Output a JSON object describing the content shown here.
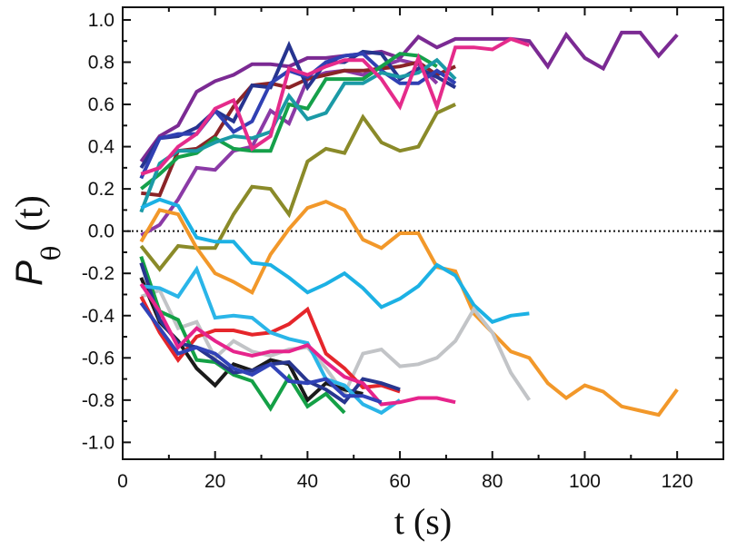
{
  "chart_data": {
    "type": "line",
    "title": "",
    "xlabel": "t (s)",
    "ylabel": {
      "main": "P",
      "subscript": "θ",
      "suffix": "(t)"
    },
    "xlim": [
      0,
      130
    ],
    "ylim": [
      -1.08,
      1.06
    ],
    "xticks": [
      0,
      20,
      40,
      60,
      80,
      100,
      120
    ],
    "xtick_labels": [
      "0",
      "20",
      "40",
      "60",
      "80",
      "100",
      "120"
    ],
    "yticks": [
      -1.0,
      -0.8,
      -0.6,
      -0.4,
      -0.2,
      0.0,
      0.2,
      0.4,
      0.6,
      0.8,
      1.0
    ],
    "ytick_labels": [
      "-1.0",
      "-0.8",
      "-0.6",
      "-0.4",
      "-0.2",
      "0.0",
      "0.2",
      "0.4",
      "0.6",
      "0.8",
      "1.0"
    ],
    "reference_line": {
      "y": 0.0,
      "style": "dotted"
    },
    "grid": false,
    "legend": "none",
    "series": [
      {
        "name": "purple",
        "color": "#7b2a93",
        "x": [
          4,
          8,
          12,
          16,
          20,
          24,
          28,
          32,
          36,
          40,
          44,
          48,
          52,
          56,
          60,
          64,
          68,
          72,
          76,
          80,
          84,
          88,
          92,
          96,
          100,
          104,
          108,
          112,
          116,
          120
        ],
        "y": [
          0.33,
          0.45,
          0.5,
          0.66,
          0.71,
          0.74,
          0.79,
          0.79,
          0.78,
          0.82,
          0.82,
          0.83,
          0.84,
          0.85,
          0.82,
          0.92,
          0.87,
          0.91,
          0.91,
          0.91,
          0.91,
          0.9,
          0.78,
          0.93,
          0.82,
          0.77,
          0.94,
          0.94,
          0.83,
          0.93
        ]
      },
      {
        "name": "purple 2",
        "color": "#8b3aa6",
        "x": [
          4,
          8,
          12,
          16,
          20,
          24,
          28,
          32,
          36,
          40,
          44,
          48,
          52,
          56,
          60,
          64,
          68
        ],
        "y": [
          -0.02,
          0.03,
          0.15,
          0.3,
          0.29,
          0.38,
          0.4,
          0.57,
          0.51,
          0.72,
          0.75,
          0.76,
          0.74,
          0.78,
          0.81,
          0.79,
          0.7
        ]
      },
      {
        "name": "dark red",
        "color": "#8a2427",
        "x": [
          4,
          8,
          12,
          16,
          20,
          24,
          28,
          32,
          36,
          40,
          44,
          48,
          52,
          56,
          60,
          64,
          68,
          72
        ],
        "y": [
          0.18,
          0.17,
          0.38,
          0.39,
          0.45,
          0.59,
          0.69,
          0.7,
          0.68,
          0.72,
          0.74,
          0.76,
          0.76,
          0.77,
          0.78,
          0.8,
          0.74,
          0.78
        ]
      },
      {
        "name": "navy",
        "color": "#26348f",
        "x": [
          4,
          8,
          12,
          16,
          20,
          24,
          28,
          32,
          36,
          40,
          44,
          48,
          52,
          56,
          60,
          64,
          68,
          72
        ],
        "y": [
          0.3,
          0.44,
          0.45,
          0.49,
          0.57,
          0.52,
          0.69,
          0.68,
          0.88,
          0.68,
          0.8,
          0.8,
          0.85,
          0.84,
          0.72,
          0.77,
          0.73,
          0.68
        ]
      },
      {
        "name": "blue",
        "color": "#3040b3",
        "x": [
          4,
          8,
          12,
          16,
          20,
          24,
          28,
          32,
          36,
          40,
          44,
          48,
          52,
          56,
          60,
          64,
          68,
          72
        ],
        "y": [
          0.25,
          0.44,
          0.46,
          0.46,
          0.57,
          0.47,
          0.52,
          0.7,
          0.76,
          0.73,
          0.8,
          0.83,
          0.84,
          0.76,
          0.7,
          0.7,
          0.76,
          0.7
        ]
      },
      {
        "name": "green",
        "color": "#15a04a",
        "x": [
          4,
          8,
          12,
          16,
          20,
          24,
          28,
          32,
          36,
          40,
          44,
          48,
          52,
          56,
          60,
          64,
          68
        ],
        "y": [
          0.2,
          0.27,
          0.35,
          0.37,
          0.44,
          0.39,
          0.38,
          0.38,
          0.6,
          0.58,
          0.72,
          0.72,
          0.72,
          0.78,
          0.84,
          0.83,
          0.78
        ]
      },
      {
        "name": "teal",
        "color": "#1b9aa6",
        "x": [
          4,
          8,
          12,
          16,
          20,
          24,
          28,
          32,
          36,
          40,
          44,
          48,
          52,
          56,
          60,
          64,
          68,
          72
        ],
        "y": [
          0.09,
          0.32,
          0.38,
          0.38,
          0.42,
          0.45,
          0.44,
          0.47,
          0.64,
          0.53,
          0.56,
          0.7,
          0.7,
          0.75,
          0.73,
          0.75,
          0.81,
          0.72
        ]
      },
      {
        "name": "magenta",
        "color": "#e52b8b",
        "x": [
          4,
          8,
          12,
          16,
          20,
          24,
          28,
          32,
          36,
          40,
          44,
          48,
          52,
          56,
          60,
          64,
          68,
          72,
          76,
          80,
          84,
          88
        ],
        "y": [
          0.27,
          0.3,
          0.4,
          0.46,
          0.58,
          0.62,
          0.39,
          0.45,
          0.77,
          0.74,
          0.78,
          0.81,
          0.81,
          0.72,
          0.59,
          0.82,
          0.59,
          0.87,
          0.87,
          0.86,
          0.91,
          0.88
        ]
      },
      {
        "name": "olive",
        "color": "#8a8a29",
        "x": [
          4,
          8,
          12,
          16,
          20,
          24,
          28,
          32,
          36,
          40,
          44,
          48,
          52,
          56,
          60,
          64,
          68,
          72
        ],
        "y": [
          -0.07,
          -0.18,
          -0.07,
          -0.08,
          -0.08,
          0.08,
          0.21,
          0.2,
          0.08,
          0.33,
          0.39,
          0.37,
          0.54,
          0.42,
          0.38,
          0.4,
          0.56,
          0.6
        ]
      },
      {
        "name": "orange",
        "color": "#f2982a",
        "x": [
          4,
          8,
          12,
          16,
          20,
          24,
          28,
          32,
          36,
          40,
          44,
          48,
          52,
          56,
          60,
          64,
          68,
          72,
          76,
          80,
          84,
          88,
          92,
          96,
          100,
          104,
          108,
          112,
          116,
          120
        ],
        "y": [
          -0.05,
          0.1,
          0.08,
          -0.08,
          -0.2,
          -0.24,
          -0.29,
          -0.11,
          0.01,
          0.11,
          0.14,
          0.1,
          -0.04,
          -0.08,
          -0.01,
          -0.01,
          -0.17,
          -0.19,
          -0.39,
          -0.48,
          -0.57,
          -0.6,
          -0.72,
          -0.79,
          -0.73,
          -0.76,
          -0.83,
          -0.85,
          -0.87,
          -0.75
        ]
      },
      {
        "name": "cyan",
        "color": "#1cb1e4",
        "x": [
          4,
          8,
          12,
          16,
          20,
          24,
          28,
          32,
          36,
          40,
          44,
          48,
          52,
          56,
          60,
          64,
          68,
          72,
          76,
          80,
          84,
          88
        ],
        "y": [
          0.11,
          0.15,
          0.12,
          -0.03,
          -0.05,
          -0.05,
          -0.15,
          -0.16,
          -0.22,
          -0.29,
          -0.25,
          -0.2,
          -0.27,
          -0.36,
          -0.32,
          -0.26,
          -0.16,
          -0.21,
          -0.35,
          -0.43,
          -0.4,
          -0.39
        ]
      },
      {
        "name": "light gray",
        "color": "#c2c4c7",
        "x": [
          4,
          8,
          12,
          16,
          20,
          24,
          28,
          32,
          36,
          40,
          44,
          48,
          52,
          56,
          60,
          64,
          68,
          72,
          76,
          80,
          84,
          88
        ],
        "y": [
          -0.31,
          -0.28,
          -0.46,
          -0.43,
          -0.6,
          -0.52,
          -0.57,
          -0.59,
          -0.56,
          -0.55,
          -0.65,
          -0.77,
          -0.58,
          -0.56,
          -0.64,
          -0.63,
          -0.6,
          -0.52,
          -0.37,
          -0.48,
          -0.67,
          -0.8
        ]
      },
      {
        "name": "black",
        "color": "#1a1a1a",
        "x": [
          4,
          8,
          12,
          16,
          20,
          24,
          28,
          32,
          36,
          40,
          44,
          48,
          52
        ],
        "y": [
          -0.22,
          -0.43,
          -0.52,
          -0.65,
          -0.73,
          -0.63,
          -0.66,
          -0.61,
          -0.63,
          -0.8,
          -0.72,
          -0.75,
          -0.77
        ]
      },
      {
        "name": "red",
        "color": "#e5262b",
        "x": [
          4,
          8,
          12,
          16,
          20,
          24,
          28,
          32,
          36,
          40,
          44,
          48,
          52,
          56,
          60
        ],
        "y": [
          -0.31,
          -0.48,
          -0.61,
          -0.5,
          -0.47,
          -0.47,
          -0.49,
          -0.48,
          -0.44,
          -0.37,
          -0.58,
          -0.65,
          -0.74,
          -0.73,
          -0.76
        ]
      },
      {
        "name": "green 2",
        "color": "#14a046",
        "x": [
          4,
          8,
          12,
          16,
          20,
          24,
          28,
          32,
          36,
          40,
          44,
          48
        ],
        "y": [
          -0.12,
          -0.38,
          -0.42,
          -0.61,
          -0.62,
          -0.68,
          -0.71,
          -0.84,
          -0.69,
          -0.83,
          -0.77,
          -0.86
        ]
      },
      {
        "name": "navy 2",
        "color": "#28368f",
        "x": [
          4,
          8,
          12,
          16,
          20,
          24,
          28,
          32,
          36,
          40,
          44,
          48,
          52,
          56,
          60
        ],
        "y": [
          -0.15,
          -0.42,
          -0.53,
          -0.55,
          -0.61,
          -0.67,
          -0.66,
          -0.63,
          -0.62,
          -0.71,
          -0.75,
          -0.81,
          -0.7,
          -0.72,
          -0.75
        ]
      },
      {
        "name": "cyan 2",
        "color": "#2ab5e8",
        "x": [
          4,
          8,
          12,
          16,
          20,
          24,
          28,
          32,
          36,
          40,
          44,
          48,
          52,
          56,
          60
        ],
        "y": [
          -0.26,
          -0.27,
          -0.31,
          -0.18,
          -0.41,
          -0.4,
          -0.41,
          -0.48,
          -0.51,
          -0.53,
          -0.7,
          -0.73,
          -0.82,
          -0.86,
          -0.8
        ]
      },
      {
        "name": "magenta 2",
        "color": "#e6248c",
        "x": [
          4,
          8,
          12,
          16,
          20,
          24,
          28,
          32,
          36,
          40,
          44,
          48,
          52,
          56,
          60,
          64,
          68,
          72
        ],
        "y": [
          -0.25,
          -0.38,
          -0.55,
          -0.46,
          -0.52,
          -0.57,
          -0.59,
          -0.57,
          -0.57,
          -0.54,
          -0.62,
          -0.69,
          -0.72,
          -0.82,
          -0.81,
          -0.79,
          -0.79,
          -0.81
        ]
      },
      {
        "name": "blue 2",
        "color": "#3143b8",
        "x": [
          4,
          8,
          12,
          16,
          20,
          24,
          28,
          32,
          36,
          40,
          44,
          48,
          52,
          56
        ],
        "y": [
          -0.34,
          -0.46,
          -0.58,
          -0.55,
          -0.58,
          -0.65,
          -0.68,
          -0.63,
          -0.71,
          -0.72,
          -0.7,
          -0.78,
          -0.78,
          -0.81
        ]
      }
    ]
  }
}
